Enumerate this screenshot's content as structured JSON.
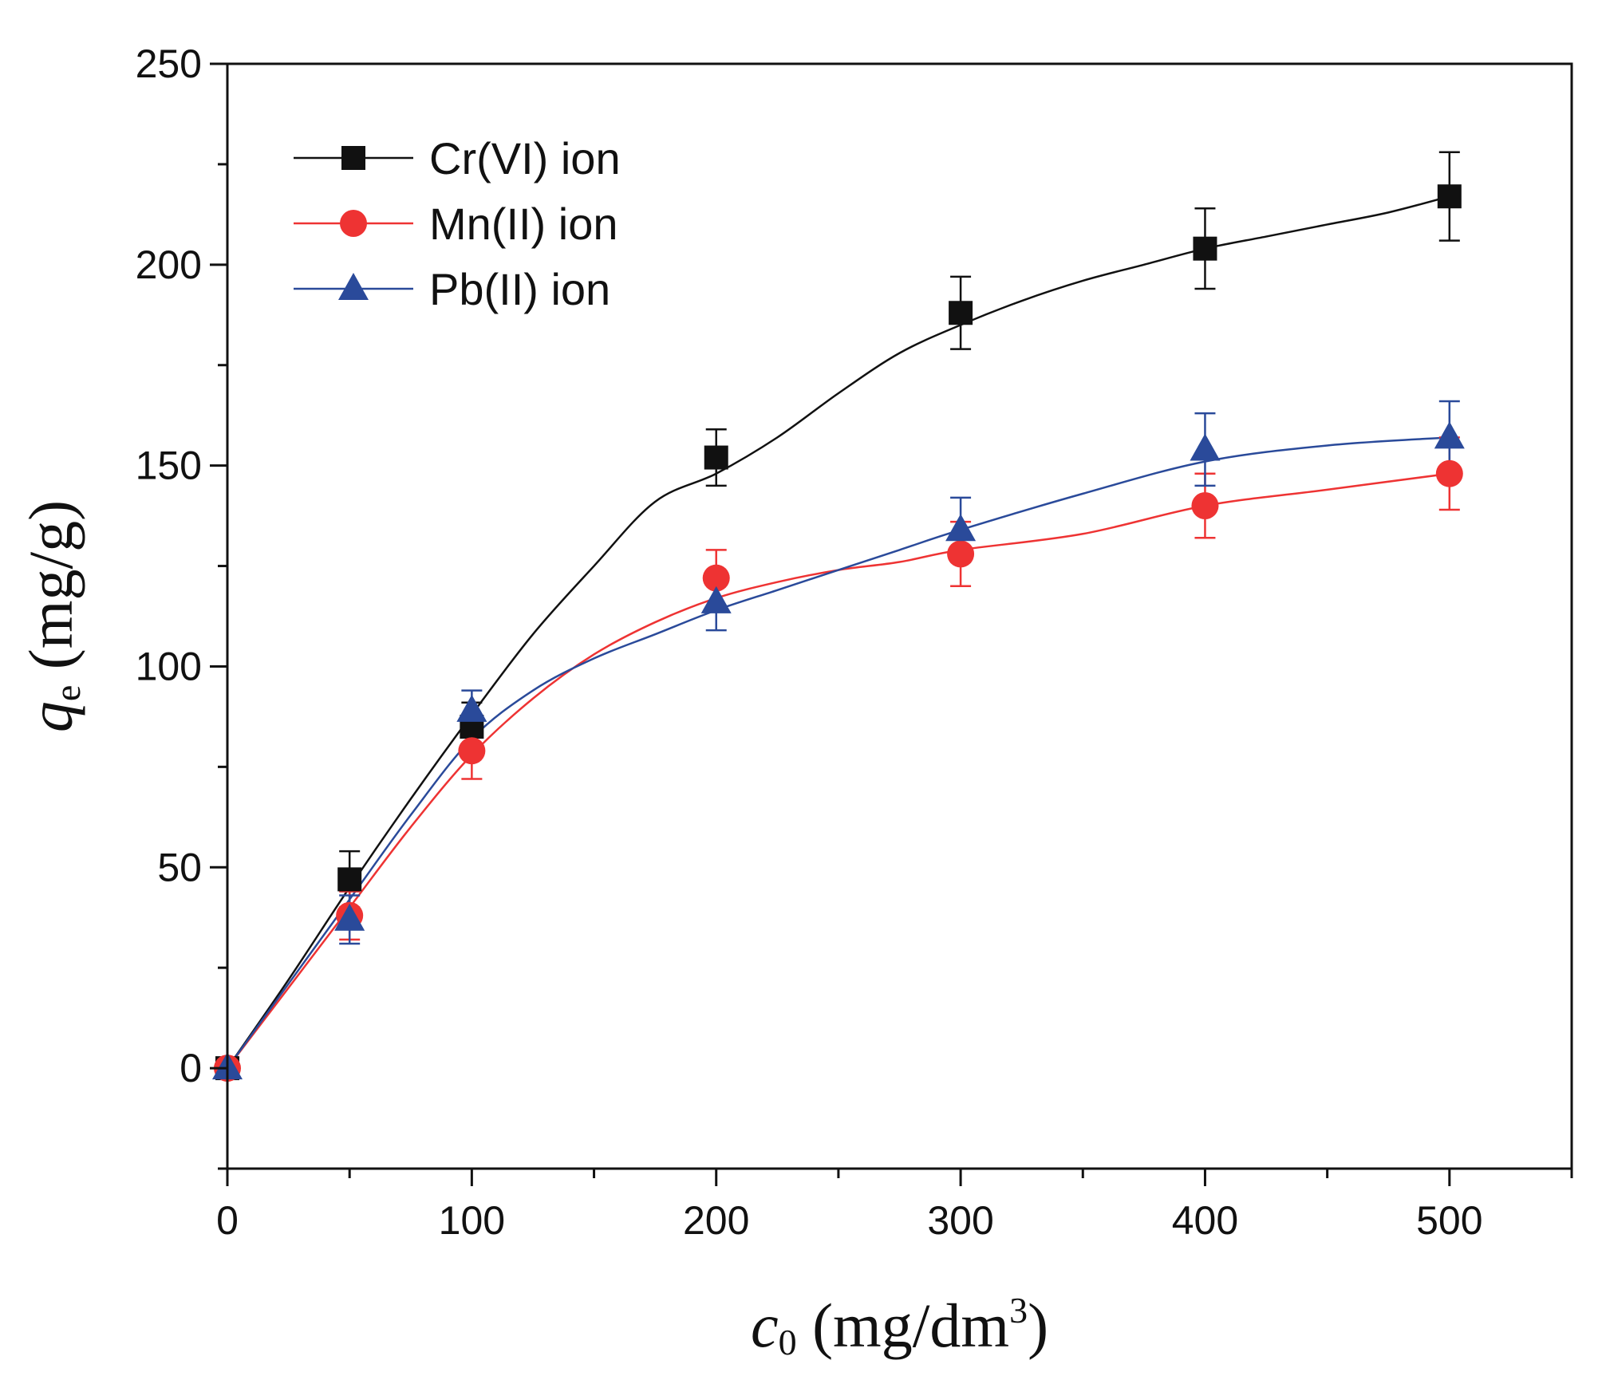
{
  "chart_data": {
    "type": "scatter",
    "xlabel": {
      "symbol": "c",
      "subscript": "0",
      "unit_main": " (mg/dm",
      "unit_sup": "3",
      "unit_end": ")"
    },
    "ylabel": {
      "symbol": "q",
      "subscript": "e",
      "unit": " (mg/g)"
    },
    "xlim": [
      0,
      550
    ],
    "ylim": [
      -25,
      250
    ],
    "xticks": [
      0,
      100,
      200,
      300,
      400,
      500
    ],
    "yticks": [
      0,
      50,
      100,
      150,
      200,
      250
    ],
    "x_minor": [
      50,
      150,
      250,
      350,
      450,
      550
    ],
    "y_minor": [
      -25,
      25,
      75,
      125,
      175,
      225
    ],
    "grid": false,
    "legend_position": "top-left",
    "series": [
      {
        "name": "Cr(VI) ion",
        "color": "#111111",
        "marker": "square",
        "x": [
          0,
          50,
          100,
          200,
          300,
          400,
          500
        ],
        "values": [
          0,
          47,
          85,
          152,
          188,
          204,
          217
        ],
        "errors": [
          0,
          7,
          6,
          7,
          9,
          10,
          11
        ],
        "fit": [
          [
            0,
            0
          ],
          [
            25,
            22
          ],
          [
            50,
            45
          ],
          [
            75,
            67
          ],
          [
            100,
            88
          ],
          [
            125,
            108
          ],
          [
            150,
            125
          ],
          [
            175,
            141
          ],
          [
            200,
            148
          ],
          [
            225,
            157
          ],
          [
            250,
            168
          ],
          [
            275,
            178
          ],
          [
            300,
            185
          ],
          [
            325,
            191
          ],
          [
            350,
            196
          ],
          [
            375,
            200
          ],
          [
            400,
            204
          ],
          [
            425,
            207
          ],
          [
            450,
            210
          ],
          [
            475,
            213
          ],
          [
            500,
            217
          ]
        ]
      },
      {
        "name": "Mn(II) ion",
        "color": "#ee3333",
        "marker": "circle",
        "x": [
          0,
          50,
          100,
          200,
          300,
          400,
          500
        ],
        "values": [
          0,
          38,
          79,
          122,
          128,
          140,
          148
        ],
        "errors": [
          0,
          6,
          7,
          7,
          8,
          8,
          9
        ],
        "fit": [
          [
            0,
            0
          ],
          [
            25,
            20
          ],
          [
            50,
            40
          ],
          [
            75,
            60
          ],
          [
            100,
            78
          ],
          [
            125,
            92
          ],
          [
            150,
            103
          ],
          [
            175,
            111
          ],
          [
            200,
            117
          ],
          [
            225,
            121
          ],
          [
            250,
            124
          ],
          [
            275,
            126
          ],
          [
            300,
            129
          ],
          [
            350,
            133
          ],
          [
            400,
            140
          ],
          [
            450,
            144
          ],
          [
            500,
            148
          ]
        ]
      },
      {
        "name": "Pb(II) ion",
        "color": "#2a4a9a",
        "marker": "triangle",
        "x": [
          0,
          50,
          100,
          200,
          300,
          400,
          500
        ],
        "values": [
          0,
          37,
          89,
          116,
          134,
          154,
          157
        ],
        "errors": [
          0,
          6,
          5,
          7,
          8,
          9,
          9
        ],
        "fit": [
          [
            0,
            0
          ],
          [
            25,
            21
          ],
          [
            50,
            42
          ],
          [
            75,
            63
          ],
          [
            100,
            82
          ],
          [
            125,
            94
          ],
          [
            150,
            102
          ],
          [
            175,
            108
          ],
          [
            200,
            114
          ],
          [
            225,
            119
          ],
          [
            250,
            124
          ],
          [
            275,
            129
          ],
          [
            300,
            134
          ],
          [
            350,
            143
          ],
          [
            400,
            151
          ],
          [
            450,
            155
          ],
          [
            500,
            157
          ]
        ]
      }
    ]
  }
}
